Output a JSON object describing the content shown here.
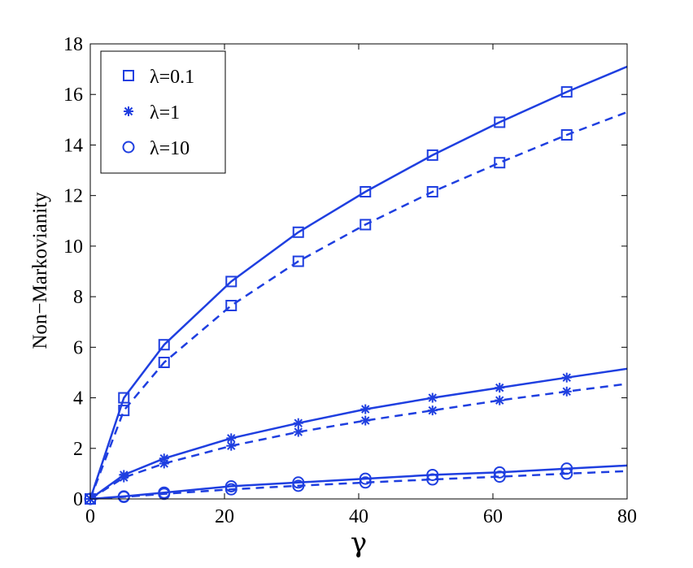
{
  "chart_data": {
    "type": "line",
    "title": "",
    "xlabel": "γ",
    "ylabel": "Non−Markovianity",
    "xlim": [
      0,
      80
    ],
    "ylim": [
      0,
      18
    ],
    "xticks": [
      0,
      20,
      40,
      60,
      80
    ],
    "yticks": [
      0,
      2,
      4,
      6,
      8,
      10,
      12,
      14,
      16,
      18
    ],
    "grid": false,
    "legend": {
      "placement": "top-left",
      "entries": [
        {
          "label": "λ=0.1",
          "marker": "square"
        },
        {
          "label": "λ=1",
          "marker": "asterisk"
        },
        {
          "label": "λ=10",
          "marker": "circle"
        }
      ]
    },
    "colors": {
      "series": "#1f3fe0",
      "axes": "#000000"
    },
    "series": [
      {
        "group": "λ=0.1",
        "style": "solid",
        "marker": "square",
        "x": [
          0,
          5,
          11,
          21,
          31,
          41,
          51,
          61,
          71,
          80
        ],
        "y": [
          0,
          4.0,
          6.1,
          8.6,
          10.55,
          12.15,
          13.6,
          14.9,
          16.1,
          17.1
        ]
      },
      {
        "group": "λ=0.1",
        "style": "dashed",
        "marker": "square",
        "x": [
          0,
          5,
          11,
          21,
          31,
          41,
          51,
          61,
          71,
          80
        ],
        "y": [
          0,
          3.5,
          5.4,
          7.65,
          9.4,
          10.85,
          12.15,
          13.3,
          14.4,
          15.3
        ]
      },
      {
        "group": "λ=1",
        "style": "solid",
        "marker": "asterisk",
        "x": [
          0,
          5,
          11,
          21,
          31,
          41,
          51,
          61,
          71,
          80
        ],
        "y": [
          0,
          0.95,
          1.6,
          2.4,
          3.0,
          3.55,
          4.0,
          4.4,
          4.8,
          5.15
        ]
      },
      {
        "group": "λ=1",
        "style": "dashed",
        "marker": "asterisk",
        "x": [
          0,
          5,
          11,
          21,
          31,
          41,
          51,
          61,
          71,
          80
        ],
        "y": [
          0,
          0.85,
          1.4,
          2.1,
          2.65,
          3.1,
          3.5,
          3.9,
          4.25,
          4.55
        ]
      },
      {
        "group": "λ=10",
        "style": "solid",
        "marker": "circle",
        "x": [
          0,
          5,
          11,
          21,
          31,
          41,
          51,
          61,
          71,
          80
        ],
        "y": [
          0,
          0.1,
          0.25,
          0.5,
          0.65,
          0.8,
          0.95,
          1.05,
          1.2,
          1.32
        ]
      },
      {
        "group": "λ=10",
        "style": "dashed",
        "marker": "circle",
        "x": [
          0,
          5,
          11,
          21,
          31,
          41,
          51,
          61,
          71,
          80
        ],
        "y": [
          0,
          0.08,
          0.2,
          0.38,
          0.52,
          0.65,
          0.77,
          0.88,
          1.0,
          1.1
        ]
      }
    ]
  }
}
